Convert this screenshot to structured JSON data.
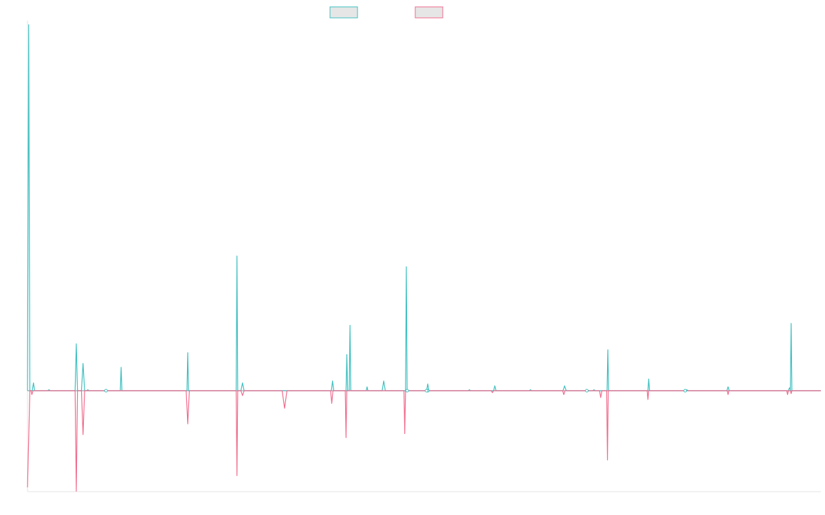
{
  "chart_data": {
    "type": "line",
    "title": "",
    "xlabel": "",
    "ylabel": "",
    "grid": false,
    "legend_position": "top-center",
    "x_domain": [
      0,
      1
    ],
    "ylim": [
      -100,
      380
    ],
    "series": [
      {
        "name": "",
        "color": "#3cbfbf",
        "fill": "#e6e6e6",
        "points": [
          [
            0.0,
            0
          ],
          [
            0.0015,
            375
          ],
          [
            0.003,
            0
          ],
          [
            0.006,
            0
          ],
          [
            0.0075,
            8
          ],
          [
            0.009,
            0
          ],
          [
            0.025,
            0
          ],
          [
            0.027,
            1
          ],
          [
            0.029,
            0
          ],
          [
            0.06,
            0
          ],
          [
            0.0615,
            48
          ],
          [
            0.063,
            0
          ],
          [
            0.068,
            0
          ],
          [
            0.07,
            28
          ],
          [
            0.072,
            0
          ],
          [
            0.0745,
            0
          ],
          [
            0.076,
            1
          ],
          [
            0.0775,
            0
          ],
          [
            0.097,
            0
          ],
          [
            0.099,
            1
          ],
          [
            0.101,
            0
          ],
          [
            0.117,
            0
          ],
          [
            0.118,
            24
          ],
          [
            0.119,
            0
          ],
          [
            0.201,
            0
          ],
          [
            0.202,
            39
          ],
          [
            0.203,
            0
          ],
          [
            0.263,
            0
          ],
          [
            0.264,
            138
          ],
          [
            0.265,
            0
          ],
          [
            0.269,
            0
          ],
          [
            0.271,
            8
          ],
          [
            0.273,
            0
          ],
          [
            0.383,
            0
          ],
          [
            0.3845,
            10
          ],
          [
            0.386,
            0
          ],
          [
            0.4015,
            0
          ],
          [
            0.4025,
            37
          ],
          [
            0.4035,
            0
          ],
          [
            0.4055,
            0
          ],
          [
            0.4065,
            67
          ],
          [
            0.4075,
            0
          ],
          [
            0.427,
            0
          ],
          [
            0.428,
            4
          ],
          [
            0.429,
            0
          ],
          [
            0.447,
            0
          ],
          [
            0.449,
            10
          ],
          [
            0.451,
            0
          ],
          [
            0.4765,
            0
          ],
          [
            0.4775,
            127
          ],
          [
            0.4785,
            0
          ],
          [
            0.477,
            0
          ],
          [
            0.477,
            0
          ],
          [
            0.477,
            0
          ],
          [
            0.503,
            0
          ],
          [
            0.5045,
            7
          ],
          [
            0.506,
            0
          ],
          [
            0.5555,
            0
          ],
          [
            0.557,
            1
          ],
          [
            0.5585,
            0
          ],
          [
            0.5875,
            0
          ],
          [
            0.589,
            5
          ],
          [
            0.5905,
            0
          ],
          [
            0.6325,
            0
          ],
          [
            0.634,
            1
          ],
          [
            0.6355,
            0
          ],
          [
            0.675,
            0
          ],
          [
            0.677,
            5
          ],
          [
            0.679,
            0
          ],
          [
            0.7125,
            0
          ],
          [
            0.714,
            1
          ],
          [
            0.7155,
            0
          ],
          [
            0.7305,
            0
          ],
          [
            0.7315,
            42
          ],
          [
            0.7325,
            0
          ],
          [
            0.782,
            0
          ],
          [
            0.783,
            12
          ],
          [
            0.784,
            0
          ],
          [
            0.829,
            0
          ],
          [
            0.831,
            1
          ],
          [
            0.833,
            0
          ],
          [
            0.8815,
            0
          ],
          [
            0.883,
            4
          ],
          [
            0.8845,
            0
          ],
          [
            0.959,
            0
          ],
          [
            0.9605,
            3
          ],
          [
            0.962,
            0
          ],
          [
            0.9615,
            0
          ],
          [
            0.9625,
            69
          ],
          [
            0.9635,
            0
          ],
          [
            0.964,
            0
          ],
          [
            1.0,
            0
          ]
        ]
      },
      {
        "name": "",
        "color": "#f06a8c",
        "fill": "#e6e6e6",
        "points": [
          [
            0.0,
            -99
          ],
          [
            0.003,
            0
          ],
          [
            0.0045,
            0
          ],
          [
            0.0055,
            -4
          ],
          [
            0.007,
            0
          ],
          [
            0.06,
            0
          ],
          [
            0.0615,
            -103
          ],
          [
            0.063,
            0
          ],
          [
            0.068,
            0
          ],
          [
            0.07,
            -45
          ],
          [
            0.072,
            0
          ],
          [
            0.2,
            0
          ],
          [
            0.202,
            -34
          ],
          [
            0.204,
            0
          ],
          [
            0.263,
            0
          ],
          [
            0.264,
            -87
          ],
          [
            0.265,
            0
          ],
          [
            0.269,
            0
          ],
          [
            0.271,
            -5
          ],
          [
            0.273,
            0
          ],
          [
            0.321,
            0
          ],
          [
            0.324,
            -18
          ],
          [
            0.327,
            0
          ],
          [
            0.382,
            0
          ],
          [
            0.3835,
            -13
          ],
          [
            0.385,
            0
          ],
          [
            0.4005,
            0
          ],
          [
            0.4015,
            -48
          ],
          [
            0.4025,
            0
          ],
          [
            0.4745,
            0
          ],
          [
            0.4755,
            -44
          ],
          [
            0.4765,
            0
          ],
          [
            0.5025,
            0
          ],
          [
            0.5035,
            -1
          ],
          [
            0.5045,
            0
          ],
          [
            0.5845,
            0
          ],
          [
            0.586,
            -2
          ],
          [
            0.5875,
            0
          ],
          [
            0.6745,
            0
          ],
          [
            0.676,
            -4
          ],
          [
            0.6775,
            0
          ],
          [
            0.721,
            0
          ],
          [
            0.7225,
            -7
          ],
          [
            0.724,
            0
          ],
          [
            0.73,
            0
          ],
          [
            0.731,
            -71
          ],
          [
            0.732,
            0
          ],
          [
            0.781,
            0
          ],
          [
            0.782,
            -9
          ],
          [
            0.783,
            0
          ],
          [
            0.882,
            0
          ],
          [
            0.883,
            -4
          ],
          [
            0.884,
            0
          ],
          [
            0.957,
            0
          ],
          [
            0.958,
            -4
          ],
          [
            0.959,
            0
          ],
          [
            0.9615,
            0
          ],
          [
            0.9625,
            -3
          ],
          [
            0.9635,
            0
          ],
          [
            1.0,
            0
          ]
        ]
      }
    ]
  }
}
